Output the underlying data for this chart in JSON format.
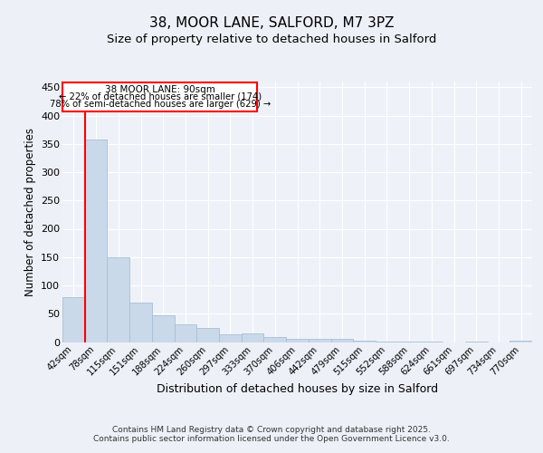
{
  "title_line1": "38, MOOR LANE, SALFORD, M7 3PZ",
  "title_line2": "Size of property relative to detached houses in Salford",
  "xlabel": "Distribution of detached houses by size in Salford",
  "ylabel": "Number of detached properties",
  "bar_labels": [
    "42sqm",
    "78sqm",
    "115sqm",
    "151sqm",
    "188sqm",
    "224sqm",
    "260sqm",
    "297sqm",
    "333sqm",
    "370sqm",
    "406sqm",
    "442sqm",
    "479sqm",
    "515sqm",
    "552sqm",
    "588sqm",
    "624sqm",
    "661sqm",
    "697sqm",
    "734sqm",
    "770sqm"
  ],
  "bar_values": [
    80,
    358,
    150,
    70,
    47,
    31,
    25,
    13,
    15,
    9,
    5,
    6,
    6,
    3,
    1,
    1,
    1,
    0,
    1,
    0,
    3
  ],
  "bar_color": "#c9d9ea",
  "bar_edge_color": "#a8bfd4",
  "red_line_x": 0.5,
  "annotation_title": "38 MOOR LANE: 90sqm",
  "annotation_line1": "← 22% of detached houses are smaller (174)",
  "annotation_line2": "78% of semi-detached houses are larger (629) →",
  "ylim": [
    0,
    460
  ],
  "yticks": [
    0,
    50,
    100,
    150,
    200,
    250,
    300,
    350,
    400,
    450
  ],
  "bg_color": "#edf1f7",
  "plot_bg_color": "#eef2f8",
  "footer_line1": "Contains HM Land Registry data © Crown copyright and database right 2025.",
  "footer_line2": "Contains public sector information licensed under the Open Government Licence v3.0."
}
